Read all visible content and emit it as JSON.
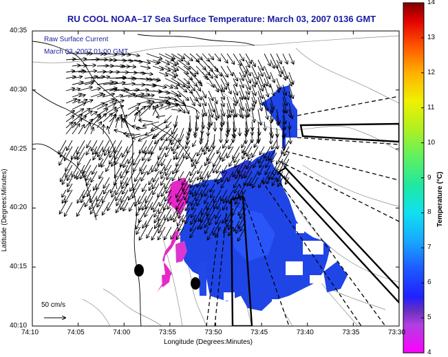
{
  "title": "RU COOL  NOAA–17  Sea Surface Temperature:  March 03, 2007 0136 GMT",
  "legend": {
    "line1": "Raw Surface Current",
    "line2": "March 03, 2007 01:00 GMT",
    "scale_label": "50 cm/s"
  },
  "axes": {
    "xlabel": "Longitude (Degrees:Minutes)",
    "ylabel": "Latitude (Degrees:Minutes)",
    "xticks": [
      "74:10",
      "74:05",
      "74:00",
      "73:55",
      "73:50",
      "73:45",
      "73:40",
      "73:35",
      "73:30"
    ],
    "yticks": [
      "40:35",
      "40:30",
      "40:25",
      "40:20",
      "40:15",
      "40:10"
    ]
  },
  "colorbar": {
    "label": "Temperature (°C)",
    "ticks": [
      "14",
      "13",
      "12",
      "11",
      "10",
      "9",
      "8",
      "7",
      "6",
      "5",
      "4"
    ],
    "min": 4,
    "max": 14
  },
  "colors": {
    "title": "#1a1aa6",
    "legend_text": "#2020a0",
    "water_blue": "#1f45e6",
    "cold_magenta": "#e628c8"
  }
}
